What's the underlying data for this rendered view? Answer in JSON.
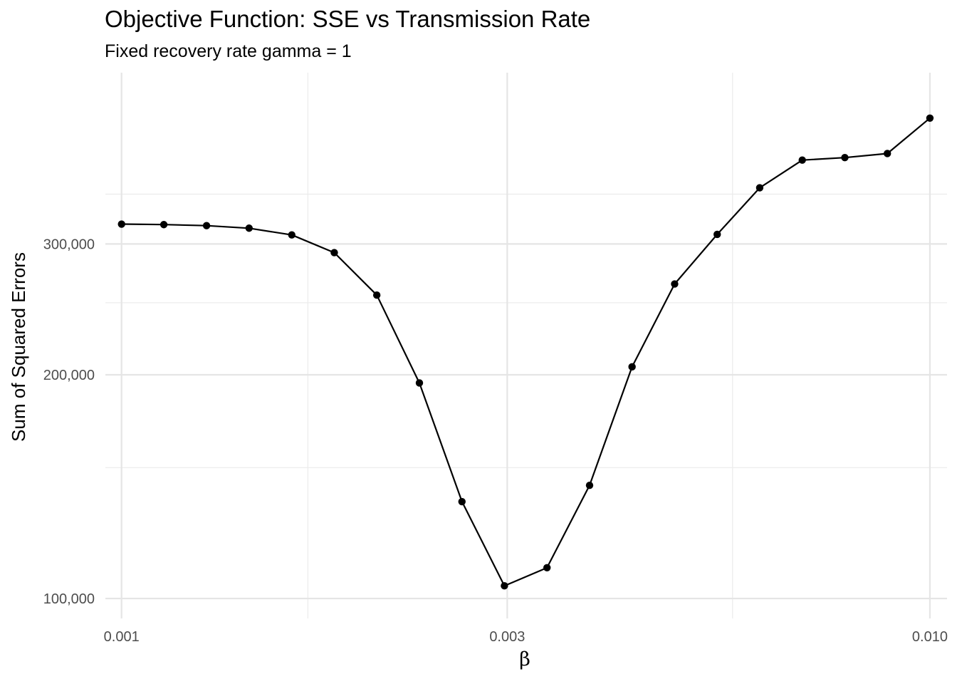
{
  "chart_data": {
    "type": "line",
    "title": "Objective Function: SSE vs Transmission Rate",
    "subtitle": "Fixed recovery rate gamma = 1",
    "xlabel": "β",
    "ylabel": "Sum of Squared Errors",
    "x_scale": "log",
    "y_scale": "log",
    "xlim": [
      0.000955,
      0.0105
    ],
    "ylim": [
      94000,
      510000
    ],
    "x_ticks": [
      0.001,
      0.003,
      0.01
    ],
    "x_tick_labels": [
      "0.001",
      "0.003",
      "0.010"
    ],
    "x_minor_ticks": [
      0.0017,
      0.0057
    ],
    "y_ticks": [
      100000,
      200000,
      300000
    ],
    "y_tick_labels": [
      "100,000",
      "200,000",
      "300,000"
    ],
    "y_minor_ticks": [
      150000,
      250000,
      350000
    ],
    "grid": true,
    "legend": "none",
    "series": [
      {
        "x": [
          0.001,
          0.001128,
          0.001274,
          0.001438,
          0.001624,
          0.001833,
          0.002069,
          0.002336,
          0.002637,
          0.002976,
          0.00336,
          0.003793,
          0.004281,
          0.004833,
          0.005456,
          0.006158,
          0.006952,
          0.007848,
          0.008859,
          0.01
        ],
        "y": [
          319000,
          318500,
          317500,
          315000,
          308500,
          292000,
          256000,
          195000,
          135000,
          104000,
          110000,
          142000,
          205000,
          265000,
          309000,
          357000,
          389000,
          392000,
          397000,
          443000
        ],
        "color": "#000000"
      }
    ]
  }
}
